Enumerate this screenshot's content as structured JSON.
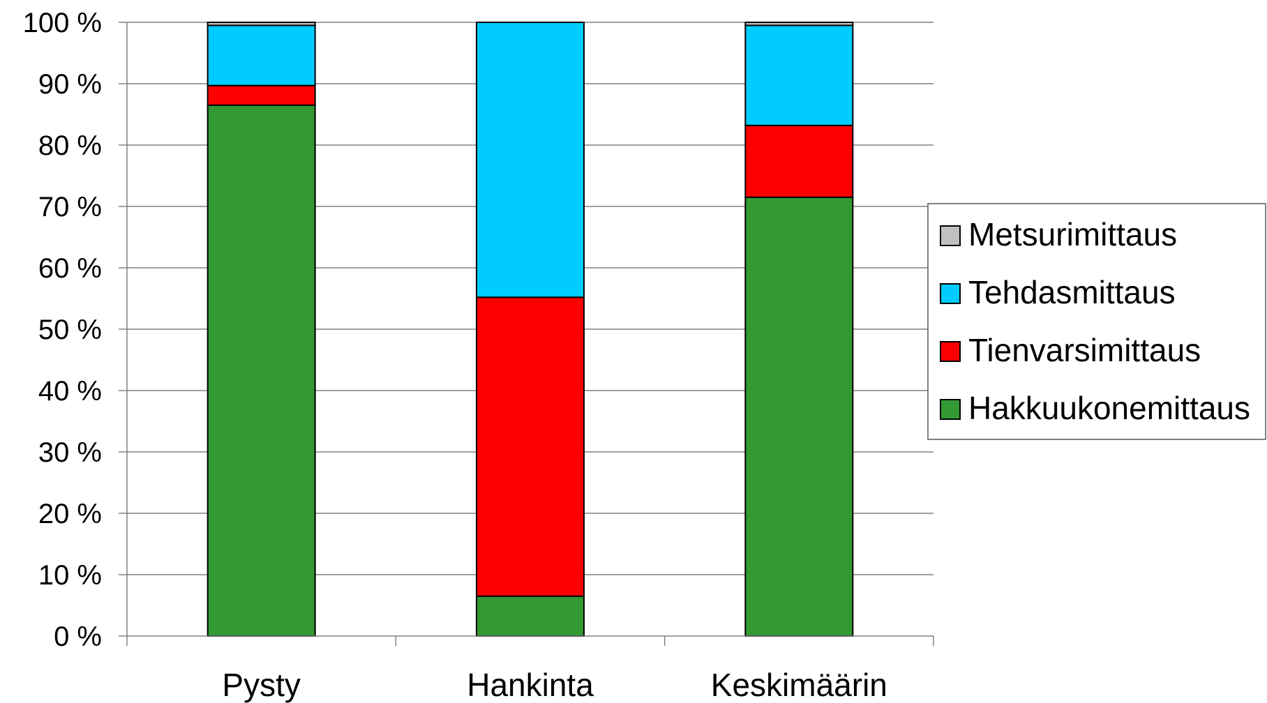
{
  "chart_data": {
    "type": "bar",
    "stacked": true,
    "percent_scale": true,
    "categories": [
      "Pysty",
      "Hankinta",
      "Keskimäärin"
    ],
    "series": [
      {
        "name": "Hakkuukonemittaus",
        "color": "#339933",
        "values": [
          86.5,
          6.5,
          71.5
        ]
      },
      {
        "name": "Tienvarsimittaus",
        "color": "#ff0000",
        "values": [
          3.2,
          48.7,
          11.7
        ]
      },
      {
        "name": "Tehdasmittaus",
        "color": "#00ccff",
        "values": [
          9.8,
          44.8,
          16.3
        ]
      },
      {
        "name": "Metsurimittaus",
        "color": "#c0c0c0",
        "values": [
          0.5,
          0.0,
          0.5
        ]
      }
    ],
    "ylim": [
      0,
      100
    ],
    "yticks": [
      "0 %",
      "10 %",
      "20 %",
      "30 %",
      "40 %",
      "50 %",
      "60 %",
      "70 %",
      "80 %",
      "90 %",
      "100 %"
    ],
    "grid": true,
    "legend_position": "right",
    "legend_order": [
      "Metsurimittaus",
      "Tehdasmittaus",
      "Tienvarsimittaus",
      "Hakkuukonemittaus"
    ]
  }
}
